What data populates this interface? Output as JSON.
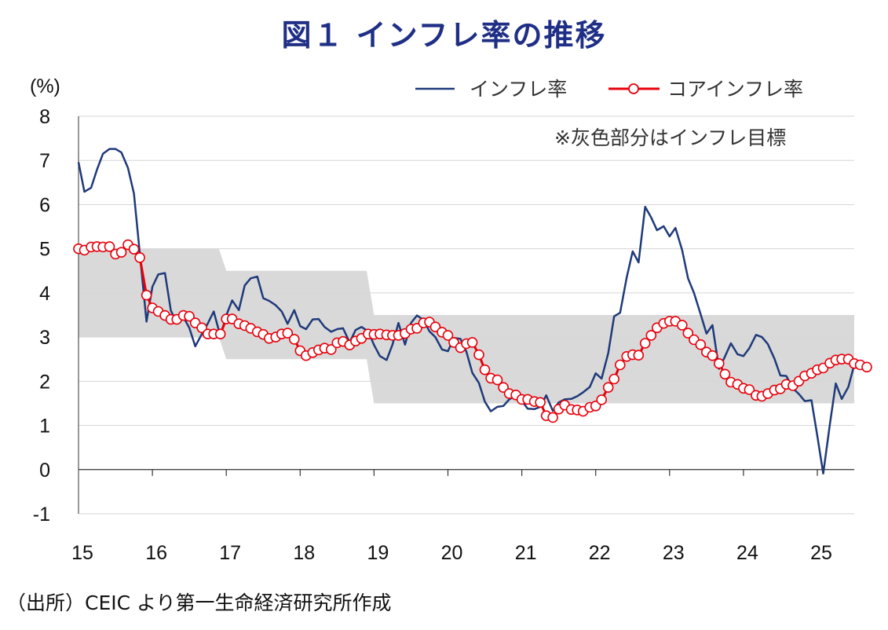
{
  "title": "図１ インフレ率の推移",
  "source": "（出所）CEIC より第一生命経済研究所作成",
  "chart_data": {
    "type": "line",
    "ylabel": "(%)",
    "ylim": [
      -1,
      8
    ],
    "yticks": [
      "8",
      "7",
      "6",
      "5",
      "4",
      "3",
      "2",
      "1",
      "0",
      "-1"
    ],
    "xticks": [
      "15",
      "16",
      "17",
      "18",
      "19",
      "20",
      "21",
      "22",
      "23",
      "24",
      "25"
    ],
    "xlim": [
      2015,
      2025.6
    ],
    "grid": true,
    "legend_position": "top-right",
    "annotation": "※灰色部分はインフレ目標",
    "colors": {
      "inflation": "#1f3a7a",
      "core": "#e8000b",
      "marker_fill": "#ffffff",
      "target_band": "#d9d9d9"
    },
    "target_band": [
      {
        "x0": 2015.0,
        "x1": 2016.9,
        "low": 3,
        "high": 5
      },
      {
        "x0": 2017.0,
        "x1": 2018.9,
        "low": 2.5,
        "high": 4.5
      },
      {
        "x0": 2019.0,
        "x1": 2025.6,
        "low": 1.5,
        "high": 3.5
      }
    ],
    "series": [
      {
        "name": "インフレ率",
        "style": "line",
        "points": [
          [
            2015.0,
            6.96
          ],
          [
            2015.08,
            6.29
          ],
          [
            2015.17,
            6.38
          ],
          [
            2015.25,
            6.79
          ],
          [
            2015.33,
            7.15
          ],
          [
            2015.42,
            7.26
          ],
          [
            2015.5,
            7.26
          ],
          [
            2015.58,
            7.18
          ],
          [
            2015.67,
            6.83
          ],
          [
            2015.75,
            6.25
          ],
          [
            2015.83,
            4.89
          ],
          [
            2015.92,
            3.35
          ],
          [
            2016.0,
            4.14
          ],
          [
            2016.08,
            4.42
          ],
          [
            2016.17,
            4.45
          ],
          [
            2016.25,
            3.6
          ],
          [
            2016.33,
            3.33
          ],
          [
            2016.42,
            3.45
          ],
          [
            2016.5,
            3.21
          ],
          [
            2016.58,
            2.79
          ],
          [
            2016.67,
            3.07
          ],
          [
            2016.75,
            3.31
          ],
          [
            2016.83,
            3.58
          ],
          [
            2016.92,
            3.02
          ],
          [
            2017.0,
            3.49
          ],
          [
            2017.08,
            3.83
          ],
          [
            2017.17,
            3.61
          ],
          [
            2017.25,
            4.17
          ],
          [
            2017.33,
            4.33
          ],
          [
            2017.42,
            4.37
          ],
          [
            2017.5,
            3.88
          ],
          [
            2017.58,
            3.82
          ],
          [
            2017.67,
            3.72
          ],
          [
            2017.75,
            3.58
          ],
          [
            2017.83,
            3.3
          ],
          [
            2017.92,
            3.61
          ],
          [
            2018.0,
            3.25
          ],
          [
            2018.08,
            3.18
          ],
          [
            2018.17,
            3.4
          ],
          [
            2018.25,
            3.41
          ],
          [
            2018.33,
            3.23
          ],
          [
            2018.42,
            3.12
          ],
          [
            2018.5,
            3.18
          ],
          [
            2018.58,
            3.2
          ],
          [
            2018.67,
            2.88
          ],
          [
            2018.75,
            3.16
          ],
          [
            2018.83,
            3.23
          ],
          [
            2018.92,
            3.13
          ],
          [
            2019.0,
            2.82
          ],
          [
            2019.08,
            2.57
          ],
          [
            2019.17,
            2.48
          ],
          [
            2019.25,
            2.83
          ],
          [
            2019.33,
            3.32
          ],
          [
            2019.42,
            2.83
          ],
          [
            2019.5,
            3.32
          ],
          [
            2019.58,
            3.49
          ],
          [
            2019.67,
            3.39
          ],
          [
            2019.75,
            3.13
          ],
          [
            2019.83,
            3.0
          ],
          [
            2019.92,
            2.72
          ],
          [
            2020.0,
            2.68
          ],
          [
            2020.08,
            2.98
          ],
          [
            2020.17,
            2.96
          ],
          [
            2020.25,
            2.67
          ],
          [
            2020.33,
            2.19
          ],
          [
            2020.42,
            1.96
          ],
          [
            2020.5,
            1.54
          ],
          [
            2020.58,
            1.32
          ],
          [
            2020.67,
            1.42
          ],
          [
            2020.75,
            1.44
          ],
          [
            2020.83,
            1.59
          ],
          [
            2020.92,
            1.68
          ],
          [
            2021.0,
            1.55
          ],
          [
            2021.08,
            1.38
          ],
          [
            2021.17,
            1.37
          ],
          [
            2021.25,
            1.42
          ],
          [
            2021.33,
            1.68
          ],
          [
            2021.42,
            1.33
          ],
          [
            2021.5,
            1.52
          ],
          [
            2021.58,
            1.59
          ],
          [
            2021.67,
            1.6
          ],
          [
            2021.75,
            1.66
          ],
          [
            2021.83,
            1.75
          ],
          [
            2021.92,
            1.87
          ],
          [
            2022.0,
            2.18
          ],
          [
            2022.08,
            2.06
          ],
          [
            2022.17,
            2.64
          ],
          [
            2022.25,
            3.47
          ],
          [
            2022.33,
            3.55
          ],
          [
            2022.42,
            4.35
          ],
          [
            2022.5,
            4.94
          ],
          [
            2022.58,
            4.69
          ],
          [
            2022.67,
            5.95
          ],
          [
            2022.75,
            5.71
          ],
          [
            2022.83,
            5.42
          ],
          [
            2022.92,
            5.51
          ],
          [
            2023.0,
            5.28
          ],
          [
            2023.08,
            5.47
          ],
          [
            2023.17,
            4.97
          ],
          [
            2023.25,
            4.33
          ],
          [
            2023.33,
            4.0
          ],
          [
            2023.42,
            3.52
          ],
          [
            2023.5,
            3.08
          ],
          [
            2023.58,
            3.27
          ],
          [
            2023.67,
            2.28
          ],
          [
            2023.75,
            2.56
          ],
          [
            2023.83,
            2.86
          ],
          [
            2023.92,
            2.61
          ],
          [
            2024.0,
            2.57
          ],
          [
            2024.08,
            2.75
          ],
          [
            2024.17,
            3.05
          ],
          [
            2024.25,
            3.0
          ],
          [
            2024.33,
            2.84
          ],
          [
            2024.42,
            2.51
          ],
          [
            2024.5,
            2.13
          ],
          [
            2024.58,
            2.12
          ],
          [
            2024.67,
            1.84
          ],
          [
            2024.75,
            1.71
          ],
          [
            2024.83,
            1.55
          ],
          [
            2024.92,
            1.57
          ],
          [
            2025.0,
            0.76
          ],
          [
            2025.08,
            -0.09
          ],
          [
            2025.17,
            1.03
          ],
          [
            2025.25,
            1.95
          ],
          [
            2025.33,
            1.6
          ],
          [
            2025.42,
            1.87
          ],
          [
            2025.5,
            2.37
          ]
        ]
      },
      {
        "name": "コアインフレ率",
        "style": "line-marker",
        "points": [
          [
            2015.0,
            5.0
          ],
          [
            2015.08,
            4.97
          ],
          [
            2015.17,
            5.04
          ],
          [
            2015.25,
            5.05
          ],
          [
            2015.33,
            5.04
          ],
          [
            2015.42,
            5.05
          ],
          [
            2015.5,
            4.88
          ],
          [
            2015.58,
            4.92
          ],
          [
            2015.67,
            5.09
          ],
          [
            2015.75,
            4.99
          ],
          [
            2015.83,
            4.8
          ],
          [
            2015.92,
            3.95
          ],
          [
            2016.0,
            3.66
          ],
          [
            2016.08,
            3.58
          ],
          [
            2016.17,
            3.49
          ],
          [
            2016.25,
            3.4
          ],
          [
            2016.33,
            3.4
          ],
          [
            2016.42,
            3.49
          ],
          [
            2016.5,
            3.47
          ],
          [
            2016.58,
            3.32
          ],
          [
            2016.67,
            3.21
          ],
          [
            2016.75,
            3.07
          ],
          [
            2016.83,
            3.07
          ],
          [
            2016.92,
            3.07
          ],
          [
            2017.0,
            3.41
          ],
          [
            2017.08,
            3.41
          ],
          [
            2017.17,
            3.3
          ],
          [
            2017.25,
            3.26
          ],
          [
            2017.33,
            3.2
          ],
          [
            2017.42,
            3.12
          ],
          [
            2017.5,
            3.06
          ],
          [
            2017.58,
            2.97
          ],
          [
            2017.67,
            3.0
          ],
          [
            2017.75,
            3.07
          ],
          [
            2017.83,
            3.09
          ],
          [
            2017.92,
            2.95
          ],
          [
            2018.0,
            2.69
          ],
          [
            2018.08,
            2.58
          ],
          [
            2018.17,
            2.65
          ],
          [
            2018.25,
            2.71
          ],
          [
            2018.33,
            2.75
          ],
          [
            2018.42,
            2.72
          ],
          [
            2018.5,
            2.87
          ],
          [
            2018.58,
            2.9
          ],
          [
            2018.67,
            2.82
          ],
          [
            2018.75,
            2.91
          ],
          [
            2018.83,
            2.97
          ],
          [
            2018.92,
            3.07
          ],
          [
            2019.0,
            3.06
          ],
          [
            2019.08,
            3.07
          ],
          [
            2019.17,
            3.05
          ],
          [
            2019.25,
            3.04
          ],
          [
            2019.33,
            3.04
          ],
          [
            2019.42,
            3.08
          ],
          [
            2019.5,
            3.18
          ],
          [
            2019.58,
            3.2
          ],
          [
            2019.67,
            3.32
          ],
          [
            2019.75,
            3.34
          ],
          [
            2019.83,
            3.23
          ],
          [
            2019.92,
            3.11
          ],
          [
            2020.0,
            3.04
          ],
          [
            2020.08,
            2.88
          ],
          [
            2020.17,
            2.76
          ],
          [
            2020.25,
            2.85
          ],
          [
            2020.33,
            2.88
          ],
          [
            2020.42,
            2.6
          ],
          [
            2020.5,
            2.26
          ],
          [
            2020.58,
            2.07
          ],
          [
            2020.67,
            2.03
          ],
          [
            2020.75,
            1.86
          ],
          [
            2020.83,
            1.72
          ],
          [
            2020.92,
            1.69
          ],
          [
            2021.0,
            1.59
          ],
          [
            2021.08,
            1.59
          ],
          [
            2021.17,
            1.54
          ],
          [
            2021.25,
            1.52
          ],
          [
            2021.33,
            1.22
          ],
          [
            2021.42,
            1.18
          ],
          [
            2021.5,
            1.37
          ],
          [
            2021.58,
            1.46
          ],
          [
            2021.67,
            1.36
          ],
          [
            2021.75,
            1.35
          ],
          [
            2021.83,
            1.32
          ],
          [
            2021.92,
            1.41
          ],
          [
            2022.0,
            1.44
          ],
          [
            2022.08,
            1.58
          ],
          [
            2022.17,
            1.86
          ],
          [
            2022.25,
            2.05
          ],
          [
            2022.33,
            2.37
          ],
          [
            2022.42,
            2.56
          ],
          [
            2022.5,
            2.6
          ],
          [
            2022.58,
            2.59
          ],
          [
            2022.67,
            2.86
          ],
          [
            2022.75,
            3.04
          ],
          [
            2022.83,
            3.21
          ],
          [
            2022.92,
            3.31
          ],
          [
            2023.0,
            3.36
          ],
          [
            2023.08,
            3.36
          ],
          [
            2023.17,
            3.27
          ],
          [
            2023.25,
            3.09
          ],
          [
            2023.33,
            2.94
          ],
          [
            2023.42,
            2.83
          ],
          [
            2023.5,
            2.66
          ],
          [
            2023.58,
            2.58
          ],
          [
            2023.67,
            2.4
          ],
          [
            2023.75,
            2.16
          ],
          [
            2023.83,
            1.98
          ],
          [
            2023.92,
            1.93
          ],
          [
            2024.0,
            1.84
          ],
          [
            2024.08,
            1.81
          ],
          [
            2024.17,
            1.68
          ],
          [
            2024.25,
            1.66
          ],
          [
            2024.33,
            1.72
          ],
          [
            2024.42,
            1.8
          ],
          [
            2024.5,
            1.83
          ],
          [
            2024.58,
            1.93
          ],
          [
            2024.67,
            1.9
          ],
          [
            2024.75,
            2.0
          ],
          [
            2024.83,
            2.12
          ],
          [
            2024.92,
            2.18
          ],
          [
            2025.0,
            2.26
          ],
          [
            2025.08,
            2.3
          ],
          [
            2025.17,
            2.41
          ],
          [
            2025.25,
            2.48
          ],
          [
            2025.33,
            2.5
          ],
          [
            2025.42,
            2.5
          ],
          [
            2025.5,
            2.4
          ],
          [
            2025.58,
            2.37
          ],
          [
            2025.67,
            2.32
          ]
        ]
      }
    ]
  }
}
